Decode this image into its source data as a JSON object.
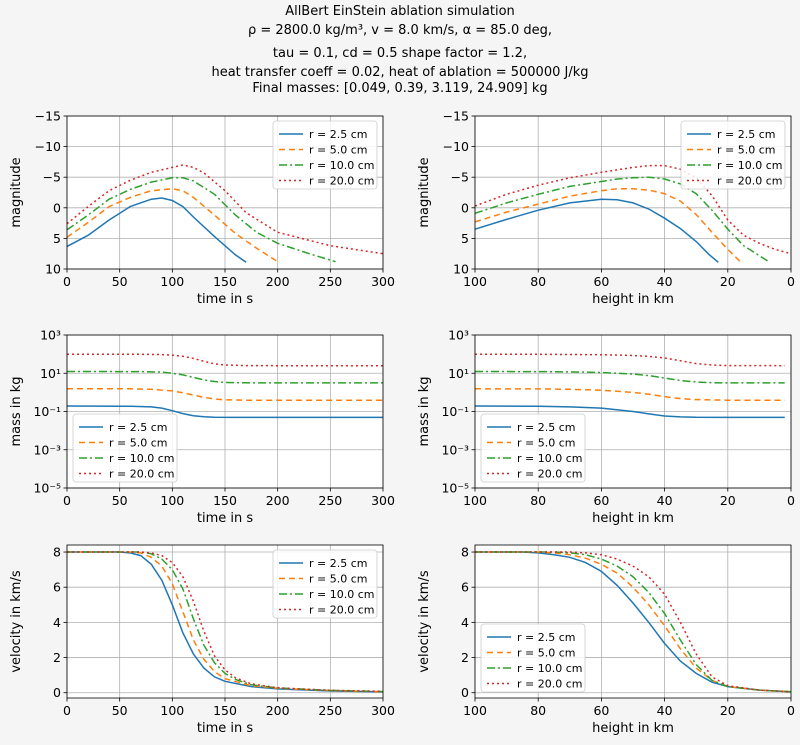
{
  "title": {
    "line1": "AllBert EinStein ablation simulation",
    "line2": "ρ = 2800.0 kg/m³, v = 8.0 km/s, α = 85.0 deg,",
    "line3": "tau = 0.1, cd = 0.5 shape factor = 1.2,",
    "line4": "heat transfer coeff = 0.02, heat of ablation = 500000 J/kg",
    "line5": "Final masses: [0.049, 0.39, 3.119, 24.909] kg"
  },
  "colors": {
    "r2_5": "#1f77b4",
    "r5": "#ff7f0e",
    "r10": "#2ca02c",
    "r20": "#d62728"
  },
  "chart_data": [
    {
      "type": "line",
      "xlabel": "time in s",
      "ylabel": "magnitude",
      "xlim": [
        0,
        300
      ],
      "ylim": [
        10,
        -15
      ],
      "xticks": [
        0,
        50,
        100,
        150,
        200,
        250,
        300
      ],
      "yticks": [
        10,
        5,
        0,
        -5,
        -10,
        -15
      ],
      "ytick_labels": [
        "10",
        "5",
        "0",
        "−5",
        "−10",
        "−15"
      ],
      "grid": true,
      "legend": "top-right",
      "series": [
        {
          "name": "r = 2.5 cm",
          "x": [
            0,
            20,
            40,
            60,
            80,
            90,
            100,
            110,
            120,
            140,
            160,
            170
          ],
          "y": [
            6.3,
            4.5,
            2.0,
            -0.2,
            -1.4,
            -1.6,
            -1.2,
            -0.2,
            1.5,
            4.7,
            7.7,
            8.9
          ]
        },
        {
          "name": "r = 5.0 cm",
          "x": [
            0,
            20,
            40,
            60,
            80,
            100,
            110,
            120,
            140,
            160,
            180,
            200
          ],
          "y": [
            4.8,
            2.4,
            -0.2,
            -1.7,
            -2.8,
            -3.1,
            -2.8,
            -1.7,
            1.2,
            4.2,
            6.6,
            8.8
          ]
        },
        {
          "name": "r = 10.0 cm",
          "x": [
            0,
            20,
            40,
            60,
            80,
            100,
            110,
            120,
            140,
            160,
            180,
            200,
            230,
            255
          ],
          "y": [
            3.6,
            1.2,
            -1.4,
            -3.0,
            -4.2,
            -4.9,
            -4.9,
            -4.4,
            -2.2,
            1.2,
            4.0,
            5.8,
            7.5,
            8.8
          ]
        },
        {
          "name": "r = 20.0 cm",
          "x": [
            0,
            20,
            40,
            60,
            80,
            100,
            110,
            120,
            130,
            150,
            170,
            200,
            250,
            300
          ],
          "y": [
            2.6,
            -0.2,
            -2.8,
            -4.5,
            -5.8,
            -6.6,
            -7.0,
            -6.6,
            -5.7,
            -2.8,
            0.8,
            4.0,
            6.2,
            7.5
          ]
        }
      ]
    },
    {
      "type": "line",
      "xlabel": "height in km",
      "ylabel": "magnitude",
      "xlim": [
        100,
        0
      ],
      "ylim": [
        10,
        -15
      ],
      "xticks": [
        100,
        80,
        60,
        40,
        20,
        0
      ],
      "yticks": [
        10,
        5,
        0,
        -5,
        -10,
        -15
      ],
      "ytick_labels": [
        "10",
        "5",
        "0",
        "−5",
        "−10",
        "−15"
      ],
      "grid": true,
      "legend": "top-right",
      "series": [
        {
          "name": "r = 2.5 cm",
          "x": [
            100,
            90,
            80,
            70,
            60,
            55,
            50,
            45,
            40,
            35,
            30,
            26,
            23
          ],
          "y": [
            3.5,
            1.9,
            0.4,
            -0.8,
            -1.4,
            -1.3,
            -0.8,
            0.2,
            1.7,
            3.4,
            5.5,
            7.6,
            8.9
          ]
        },
        {
          "name": "r = 5.0 cm",
          "x": [
            100,
            90,
            80,
            70,
            60,
            55,
            50,
            45,
            40,
            35,
            30,
            25,
            20,
            16
          ],
          "y": [
            2.3,
            0.7,
            -0.6,
            -1.9,
            -2.8,
            -3.1,
            -3.1,
            -2.9,
            -2.3,
            -1.1,
            1.1,
            4.0,
            6.8,
            8.8
          ]
        },
        {
          "name": "r = 10.0 cm",
          "x": [
            100,
            90,
            80,
            70,
            60,
            55,
            50,
            45,
            40,
            35,
            30,
            25,
            20,
            15,
            7
          ],
          "y": [
            0.9,
            -0.8,
            -2.2,
            -3.5,
            -4.3,
            -4.7,
            -4.9,
            -5.0,
            -4.7,
            -3.9,
            -2.3,
            0.4,
            3.5,
            6.2,
            8.8
          ]
        },
        {
          "name": "r = 20.0 cm",
          "x": [
            100,
            90,
            80,
            70,
            60,
            50,
            45,
            40,
            35,
            30,
            25,
            20,
            15,
            10,
            5,
            0
          ],
          "y": [
            -0.3,
            -2.2,
            -3.7,
            -4.9,
            -5.8,
            -6.6,
            -6.9,
            -6.9,
            -6.3,
            -4.9,
            -2.0,
            2.0,
            4.5,
            5.8,
            6.8,
            7.5
          ]
        }
      ]
    },
    {
      "type": "line",
      "yscale": "log",
      "xlabel": "time in s",
      "ylabel": "mass in kg",
      "xlim": [
        0,
        300
      ],
      "ylim": [
        1e-05,
        1000.0
      ],
      "xticks": [
        0,
        50,
        100,
        150,
        200,
        250,
        300
      ],
      "yticks": [
        1e-05,
        0.001,
        0.1,
        10.0,
        1000.0
      ],
      "ytick_labels": [
        "10⁻⁵",
        "10⁻³",
        "10⁻¹",
        "10¹",
        "10³"
      ],
      "grid": true,
      "legend": "bottom-left",
      "series": [
        {
          "name": "r = 2.5 cm",
          "x": [
            0,
            60,
            80,
            90,
            100,
            110,
            120,
            130,
            140,
            160,
            200,
            300
          ],
          "y": [
            0.193,
            0.19,
            0.175,
            0.15,
            0.11,
            0.078,
            0.06,
            0.053,
            0.05,
            0.049,
            0.049,
            0.049
          ]
        },
        {
          "name": "r = 5.0 cm",
          "x": [
            0,
            60,
            80,
            100,
            110,
            120,
            130,
            140,
            150,
            170,
            200,
            300
          ],
          "y": [
            1.54,
            1.53,
            1.45,
            1.2,
            0.95,
            0.72,
            0.55,
            0.45,
            0.41,
            0.39,
            0.39,
            0.39
          ]
        },
        {
          "name": "r = 10.0 cm",
          "x": [
            0,
            70,
            90,
            100,
            110,
            120,
            130,
            140,
            150,
            170,
            200,
            300
          ],
          "y": [
            12.3,
            12.2,
            11.5,
            10.0,
            8.2,
            6.1,
            4.5,
            3.7,
            3.3,
            3.15,
            3.12,
            3.119
          ]
        },
        {
          "name": "r = 20.0 cm",
          "x": [
            0,
            70,
            90,
            100,
            110,
            120,
            130,
            140,
            150,
            170,
            200,
            300
          ],
          "y": [
            98.5,
            98,
            94,
            88,
            77,
            60,
            42,
            31,
            27,
            25.2,
            24.95,
            24.909
          ]
        }
      ]
    },
    {
      "type": "line",
      "yscale": "log",
      "xlabel": "height in km",
      "ylabel": "mass in kg",
      "xlim": [
        100,
        0
      ],
      "ylim": [
        1e-05,
        1000.0
      ],
      "xticks": [
        100,
        80,
        60,
        40,
        20,
        0
      ],
      "yticks": [
        1e-05,
        0.001,
        0.1,
        10.0,
        1000.0
      ],
      "ytick_labels": [
        "10⁻⁵",
        "10⁻³",
        "10⁻¹",
        "10¹",
        "10³"
      ],
      "grid": true,
      "legend": "bottom-left",
      "series": [
        {
          "name": "r = 2.5 cm",
          "x": [
            100,
            80,
            70,
            60,
            50,
            45,
            40,
            35,
            30,
            20,
            2
          ],
          "y": [
            0.193,
            0.19,
            0.175,
            0.15,
            0.1,
            0.075,
            0.058,
            0.052,
            0.05,
            0.049,
            0.049
          ]
        },
        {
          "name": "r = 5.0 cm",
          "x": [
            100,
            80,
            70,
            60,
            50,
            45,
            40,
            35,
            30,
            20,
            2
          ],
          "y": [
            1.54,
            1.52,
            1.45,
            1.3,
            1.0,
            0.8,
            0.6,
            0.47,
            0.42,
            0.39,
            0.39
          ]
        },
        {
          "name": "r = 10.0 cm",
          "x": [
            100,
            80,
            70,
            60,
            50,
            45,
            40,
            35,
            30,
            25,
            20,
            2
          ],
          "y": [
            12.3,
            12.2,
            11.8,
            11.0,
            9.0,
            7.5,
            5.6,
            4.2,
            3.5,
            3.2,
            3.13,
            3.119
          ]
        },
        {
          "name": "r = 20.0 cm",
          "x": [
            100,
            80,
            70,
            60,
            50,
            45,
            40,
            35,
            30,
            25,
            20,
            2
          ],
          "y": [
            98.5,
            98,
            96,
            93,
            85,
            76,
            63,
            45,
            32,
            27,
            25.2,
            24.909
          ]
        }
      ]
    },
    {
      "type": "line",
      "xlabel": "time in s",
      "ylabel": "velocity in km/s",
      "xlim": [
        0,
        300
      ],
      "ylim": [
        -0.3,
        8.4
      ],
      "xticks": [
        0,
        50,
        100,
        150,
        200,
        250,
        300
      ],
      "yticks": [
        0,
        2,
        4,
        6,
        8
      ],
      "ytick_labels": [
        "0",
        "2",
        "4",
        "6",
        "8"
      ],
      "grid": true,
      "legend": "top-right",
      "series": [
        {
          "name": "r = 2.5 cm",
          "x": [
            0,
            50,
            60,
            70,
            80,
            90,
            100,
            110,
            120,
            130,
            140,
            150,
            175,
            200,
            250,
            300
          ],
          "y": [
            8.0,
            8.0,
            7.95,
            7.8,
            7.3,
            6.4,
            5.0,
            3.4,
            2.2,
            1.4,
            0.9,
            0.65,
            0.35,
            0.22,
            0.1,
            0.05
          ]
        },
        {
          "name": "r = 5.0 cm",
          "x": [
            0,
            60,
            70,
            80,
            90,
            100,
            110,
            120,
            130,
            140,
            150,
            175,
            200,
            250,
            300
          ],
          "y": [
            8.0,
            8.0,
            7.95,
            7.7,
            7.2,
            6.2,
            4.6,
            3.0,
            1.9,
            1.2,
            0.8,
            0.4,
            0.25,
            0.12,
            0.06
          ]
        },
        {
          "name": "r = 10.0 cm",
          "x": [
            0,
            70,
            80,
            90,
            100,
            110,
            120,
            130,
            140,
            150,
            160,
            175,
            200,
            250,
            300
          ],
          "y": [
            8.0,
            8.0,
            7.9,
            7.6,
            7.0,
            5.9,
            4.2,
            2.7,
            1.7,
            1.1,
            0.75,
            0.45,
            0.27,
            0.13,
            0.07
          ]
        },
        {
          "name": "r = 20.0 cm",
          "x": [
            0,
            70,
            80,
            90,
            100,
            110,
            120,
            130,
            140,
            150,
            160,
            175,
            200,
            250,
            300
          ],
          "y": [
            8.0,
            8.0,
            7.95,
            7.8,
            7.4,
            6.6,
            5.2,
            3.5,
            2.1,
            1.3,
            0.85,
            0.5,
            0.28,
            0.14,
            0.08
          ]
        }
      ]
    },
    {
      "type": "line",
      "xlabel": "height in km",
      "ylabel": "velocity in km/s",
      "xlim": [
        100,
        0
      ],
      "ylim": [
        -0.3,
        8.4
      ],
      "xticks": [
        100,
        80,
        60,
        40,
        20,
        0
      ],
      "yticks": [
        0,
        2,
        4,
        6,
        8
      ],
      "ytick_labels": [
        "0",
        "2",
        "4",
        "6",
        "8"
      ],
      "grid": true,
      "legend": "bottom-left",
      "series": [
        {
          "name": "r = 2.5 cm",
          "x": [
            100,
            85,
            80,
            75,
            70,
            65,
            60,
            55,
            50,
            45,
            40,
            35,
            30,
            25,
            20,
            10,
            0
          ],
          "y": [
            8.0,
            8.0,
            7.95,
            7.85,
            7.7,
            7.4,
            6.9,
            6.1,
            5.1,
            4.0,
            2.8,
            1.8,
            1.1,
            0.6,
            0.35,
            0.15,
            0.05
          ]
        },
        {
          "name": "r = 5.0 cm",
          "x": [
            100,
            80,
            75,
            70,
            65,
            60,
            55,
            50,
            45,
            40,
            35,
            30,
            25,
            20,
            10,
            0
          ],
          "y": [
            8.0,
            8.0,
            7.95,
            7.85,
            7.65,
            7.3,
            6.8,
            6.0,
            5.0,
            3.8,
            2.5,
            1.4,
            0.7,
            0.35,
            0.15,
            0.05
          ]
        },
        {
          "name": "r = 10.0 cm",
          "x": [
            100,
            75,
            70,
            65,
            60,
            55,
            50,
            45,
            40,
            35,
            30,
            25,
            20,
            10,
            0
          ],
          "y": [
            8.0,
            8.0,
            7.95,
            7.85,
            7.6,
            7.2,
            6.6,
            5.7,
            4.5,
            3.0,
            1.6,
            0.7,
            0.35,
            0.15,
            0.05
          ]
        },
        {
          "name": "r = 20.0 cm",
          "x": [
            100,
            70,
            65,
            60,
            55,
            50,
            45,
            40,
            35,
            30,
            25,
            20,
            10,
            0
          ],
          "y": [
            8.0,
            8.0,
            7.95,
            7.85,
            7.6,
            7.2,
            6.6,
            5.6,
            4.0,
            2.2,
            0.9,
            0.4,
            0.15,
            0.05
          ]
        }
      ]
    }
  ]
}
